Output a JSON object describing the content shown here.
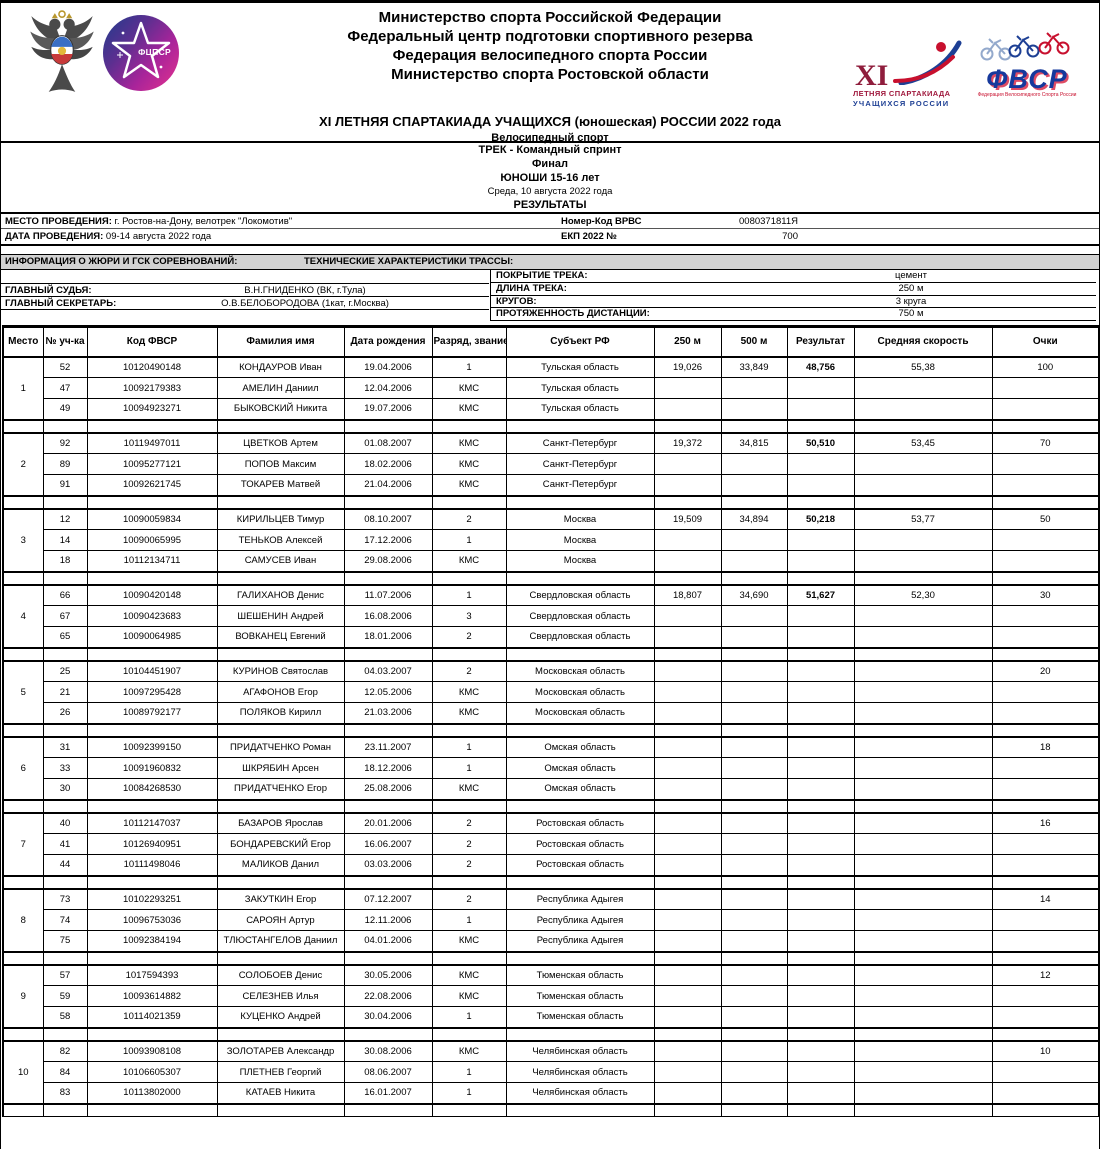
{
  "header": {
    "org_lines": [
      "Министерство спорта Российской Федерации",
      "Федеральный центр подготовки спортивного резерва",
      "Федерация велосипедного спорта России",
      "Министерство спорта Ростовской области"
    ],
    "event_title": "XI ЛЕТНЯЯ СПАРТАКИАДА УЧАЩИХСЯ (юношеская) РОССИИ 2022 года",
    "sport": "Велосипедный спорт",
    "logos": {
      "ministry_emblem": "russian-ministry-of-sport-double-eagle",
      "fcpsr_text": "ФЦПСР",
      "spartakiada_numeral": "XI",
      "spartakiada_line1": "ЛЕТНЯЯ СПАРТАКИАДА",
      "spartakiada_line2": "УЧАЩИХСЯ РОССИИ",
      "fvsr_text": "ФВСР",
      "fvsr_subtext": "Федерация Велосипедного Спорта России"
    },
    "colors": {
      "fcpsr_gradient_start": "#1e3c8c",
      "fcpsr_gradient_end": "#e6328d",
      "spartakiada_red": "#8f1d3c",
      "spartakiada_blue": "#1d3f94",
      "fvsr_blue": "#16399c",
      "fvsr_red": "#c8102e",
      "section_bar_gray": "#d2d2d2"
    }
  },
  "title_block": {
    "line1": "ТРЕК - Командный спринт",
    "line2": "Финал",
    "line3": "ЮНОШИ 15-16 лет",
    "line4": "Среда, 10 августа 2022 года",
    "line5": "РЕЗУЛЬТАТЫ"
  },
  "meta": {
    "venue_label": "МЕСТО ПРОВЕДЕНИЯ:",
    "venue_value": "г. Ростов-на-Дону, велотрек \"Локомотив\"",
    "date_label": "ДАТА ПРОВЕДЕНИЯ:",
    "date_value": "09-14 августа 2022 года",
    "vrvs_label": "Номер-Код ВРВС",
    "vrvs_value": "0080371811Я",
    "ekp_label": "ЕКП 2022 №",
    "ekp_value": "700"
  },
  "jury": {
    "section_title": "ИНФОРМАЦИЯ О ЖЮРИ И ГСК СОРЕВНОВАНИЙ:",
    "rows": [
      {
        "label": "ГЛАВНЫЙ СУДЬЯ:",
        "value": "В.Н.ГНИДЕНКО (ВК, г.Тула)"
      },
      {
        "label": "ГЛАВНЫЙ СЕКРЕТАРЬ:",
        "value": "О.В.БЕЛОБОРОДОВА (1кат, г.Москва)"
      }
    ]
  },
  "track": {
    "section_title": "ТЕХНИЧЕСКИЕ ХАРАКТЕРИСТИКИ ТРАССЫ:",
    "rows": [
      {
        "label": "ПОКРЫТИЕ ТРЕКА:",
        "value": "цемент"
      },
      {
        "label": "ДЛИНА ТРЕКА:",
        "value": "250 м"
      },
      {
        "label": "КРУГОВ:",
        "value": "3 круга"
      },
      {
        "label": "ПРОТЯЖЕННОСТЬ ДИСТАНЦИИ:",
        "value": "750 м"
      }
    ]
  },
  "results_table": {
    "columns": [
      "Место",
      "№ уч-ка",
      "Код ФВСР",
      "Фамилия имя",
      "Дата рождения",
      "Разряд, звание",
      "Субъект РФ",
      "250 м",
      "500 м",
      "Результат",
      "Средняя скорость",
      "Очки"
    ],
    "teams": [
      {
        "place": "1",
        "t250": "19,026",
        "t500": "33,849",
        "result": "48,756",
        "avg_speed": "55,38",
        "points": "100",
        "riders": [
          {
            "bib": "52",
            "code": "10120490148",
            "name": "КОНДАУРОВ Иван",
            "dob": "19.04.2006",
            "rank": "1",
            "region": "Тульская область"
          },
          {
            "bib": "47",
            "code": "10092179383",
            "name": "АМЕЛИН Даниил",
            "dob": "12.04.2006",
            "rank": "КМС",
            "region": "Тульская область"
          },
          {
            "bib": "49",
            "code": "10094923271",
            "name": "БЫКОВСКИЙ Никита",
            "dob": "19.07.2006",
            "rank": "КМС",
            "region": "Тульская область"
          }
        ]
      },
      {
        "place": "2",
        "t250": "19,372",
        "t500": "34,815",
        "result": "50,510",
        "avg_speed": "53,45",
        "points": "70",
        "riders": [
          {
            "bib": "92",
            "code": "10119497011",
            "name": "ЦВЕТКОВ Артем",
            "dob": "01.08.2007",
            "rank": "КМС",
            "region": "Санкт-Петербург"
          },
          {
            "bib": "89",
            "code": "10095277121",
            "name": "ПОПОВ Максим",
            "dob": "18.02.2006",
            "rank": "КМС",
            "region": "Санкт-Петербург"
          },
          {
            "bib": "91",
            "code": "10092621745",
            "name": "ТОКАРЕВ Матвей",
            "dob": "21.04.2006",
            "rank": "КМС",
            "region": "Санкт-Петербург"
          }
        ]
      },
      {
        "place": "3",
        "t250": "19,509",
        "t500": "34,894",
        "result": "50,218",
        "avg_speed": "53,77",
        "points": "50",
        "riders": [
          {
            "bib": "12",
            "code": "10090059834",
            "name": "КИРИЛЬЦЕВ Тимур",
            "dob": "08.10.2007",
            "rank": "2",
            "region": "Москва"
          },
          {
            "bib": "14",
            "code": "10090065995",
            "name": "ТЕНЬКОВ Алексей",
            "dob": "17.12.2006",
            "rank": "1",
            "region": "Москва"
          },
          {
            "bib": "18",
            "code": "10112134711",
            "name": "САМУСЕВ Иван",
            "dob": "29.08.2006",
            "rank": "КМС",
            "region": "Москва"
          }
        ]
      },
      {
        "place": "4",
        "t250": "18,807",
        "t500": "34,690",
        "result": "51,627",
        "avg_speed": "52,30",
        "points": "30",
        "riders": [
          {
            "bib": "66",
            "code": "10090420148",
            "name": "ГАЛИХАНОВ Денис",
            "dob": "11.07.2006",
            "rank": "1",
            "region": "Свердловская область"
          },
          {
            "bib": "67",
            "code": "10090423683",
            "name": "ШЕШЕНИН Андрей",
            "dob": "16.08.2006",
            "rank": "3",
            "region": "Свердловская область"
          },
          {
            "bib": "65",
            "code": "10090064985",
            "name": "ВОВКАНЕЦ Евгений",
            "dob": "18.01.2006",
            "rank": "2",
            "region": "Свердловская область"
          }
        ]
      },
      {
        "place": "5",
        "t250": "",
        "t500": "",
        "result": "",
        "avg_speed": "",
        "points": "20",
        "riders": [
          {
            "bib": "25",
            "code": "10104451907",
            "name": "КУРИНОВ Святослав",
            "dob": "04.03.2007",
            "rank": "2",
            "region": "Московская область"
          },
          {
            "bib": "21",
            "code": "10097295428",
            "name": "АГАФОНОВ Егор",
            "dob": "12.05.2006",
            "rank": "КМС",
            "region": "Московская область"
          },
          {
            "bib": "26",
            "code": "10089792177",
            "name": "ПОЛЯКОВ Кирилл",
            "dob": "21.03.2006",
            "rank": "КМС",
            "region": "Московская область"
          }
        ]
      },
      {
        "place": "6",
        "t250": "",
        "t500": "",
        "result": "",
        "avg_speed": "",
        "points": "18",
        "riders": [
          {
            "bib": "31",
            "code": "10092399150",
            "name": "ПРИДАТЧЕНКО Роман",
            "dob": "23.11.2007",
            "rank": "1",
            "region": "Омская область"
          },
          {
            "bib": "33",
            "code": "10091960832",
            "name": "ШКРЯБИН Арсен",
            "dob": "18.12.2006",
            "rank": "1",
            "region": "Омская область"
          },
          {
            "bib": "30",
            "code": "10084268530",
            "name": "ПРИДАТЧЕНКО Егор",
            "dob": "25.08.2006",
            "rank": "КМС",
            "region": "Омская область"
          }
        ]
      },
      {
        "place": "7",
        "t250": "",
        "t500": "",
        "result": "",
        "avg_speed": "",
        "points": "16",
        "riders": [
          {
            "bib": "40",
            "code": "10112147037",
            "name": "БАЗАРОВ Ярослав",
            "dob": "20.01.2006",
            "rank": "2",
            "region": "Ростовская область"
          },
          {
            "bib": "41",
            "code": "10126940951",
            "name": "БОНДАРЕВСКИЙ Егор",
            "dob": "16.06.2007",
            "rank": "2",
            "region": "Ростовская область"
          },
          {
            "bib": "44",
            "code": "10111498046",
            "name": "МАЛИКОВ Данил",
            "dob": "03.03.2006",
            "rank": "2",
            "region": "Ростовская область"
          }
        ]
      },
      {
        "place": "8",
        "t250": "",
        "t500": "",
        "result": "",
        "avg_speed": "",
        "points": "14",
        "riders": [
          {
            "bib": "73",
            "code": "10102293251",
            "name": "ЗАКУТКИН Егор",
            "dob": "07.12.2007",
            "rank": "2",
            "region": "Республика Адыгея"
          },
          {
            "bib": "74",
            "code": "10096753036",
            "name": "САРОЯН Артур",
            "dob": "12.11.2006",
            "rank": "1",
            "region": "Республика Адыгея"
          },
          {
            "bib": "75",
            "code": "10092384194",
            "name": "ТЛЮСТАНГЕЛОВ Даниил",
            "dob": "04.01.2006",
            "rank": "КМС",
            "region": "Республика Адыгея"
          }
        ]
      },
      {
        "place": "9",
        "t250": "",
        "t500": "",
        "result": "",
        "avg_speed": "",
        "points": "12",
        "riders": [
          {
            "bib": "57",
            "code": "1017594393",
            "name": "СОЛОБОЕВ Денис",
            "dob": "30.05.2006",
            "rank": "КМС",
            "region": "Тюменская область"
          },
          {
            "bib": "59",
            "code": "10093614882",
            "name": "СЕЛЕЗНЕВ Илья",
            "dob": "22.08.2006",
            "rank": "КМС",
            "region": "Тюменская область"
          },
          {
            "bib": "58",
            "code": "10114021359",
            "name": "КУЦЕНКО Андрей",
            "dob": "30.04.2006",
            "rank": "1",
            "region": "Тюменская область"
          }
        ]
      },
      {
        "place": "10",
        "t250": "",
        "t500": "",
        "result": "",
        "avg_speed": "",
        "points": "10",
        "riders": [
          {
            "bib": "82",
            "code": "10093908108",
            "name": "ЗОЛОТАРЕВ Александр",
            "dob": "30.08.2006",
            "rank": "КМС",
            "region": "Челябинская область"
          },
          {
            "bib": "84",
            "code": "10106605307",
            "name": "ПЛЕТНЕВ Георгий",
            "dob": "08.06.2007",
            "rank": "1",
            "region": "Челябинская область"
          },
          {
            "bib": "83",
            "code": "10113802000",
            "name": "КАТАЕВ Никита",
            "dob": "16.01.2007",
            "rank": "1",
            "region": "Челябинская область"
          }
        ]
      }
    ]
  }
}
